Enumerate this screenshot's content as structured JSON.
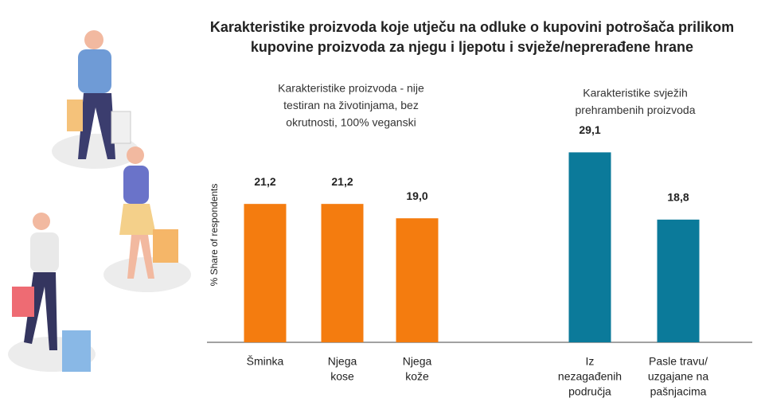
{
  "title": [
    "Karakteristike proizvoda koje utječu na odluke o kupovini potrošača prilikom",
    "kupovine proizvoda za njegu i ljepotu i svježe/neprerađene hrane"
  ],
  "chart_data": [
    {
      "type": "bar",
      "subtitle": [
        "Karakteristike proizvoda - nije",
        "testiran na životinjama, bez",
        "okrutnosti, 100% veganski"
      ],
      "y_label": "% Share of respondents",
      "categories": [
        [
          "Šminka"
        ],
        [
          "Njega",
          "kose"
        ],
        [
          "Njega",
          "kože"
        ]
      ],
      "values": [
        21.2,
        21.2,
        19.0
      ],
      "value_labels": [
        "21,2",
        "21,2",
        "19,0"
      ],
      "color": "#f47c0f"
    },
    {
      "type": "bar",
      "subtitle": [
        "Karakteristike svježih",
        "prehrambenih proizvoda"
      ],
      "categories": [
        [
          "Iz",
          "nezagađenih",
          "područja"
        ],
        [
          "Pasle travu/",
          "uzgajane na",
          "pašnjacima"
        ]
      ],
      "values": [
        29.1,
        18.8
      ],
      "value_labels": [
        "29,1",
        "18,8"
      ],
      "color": "#0b7a9a"
    }
  ]
}
